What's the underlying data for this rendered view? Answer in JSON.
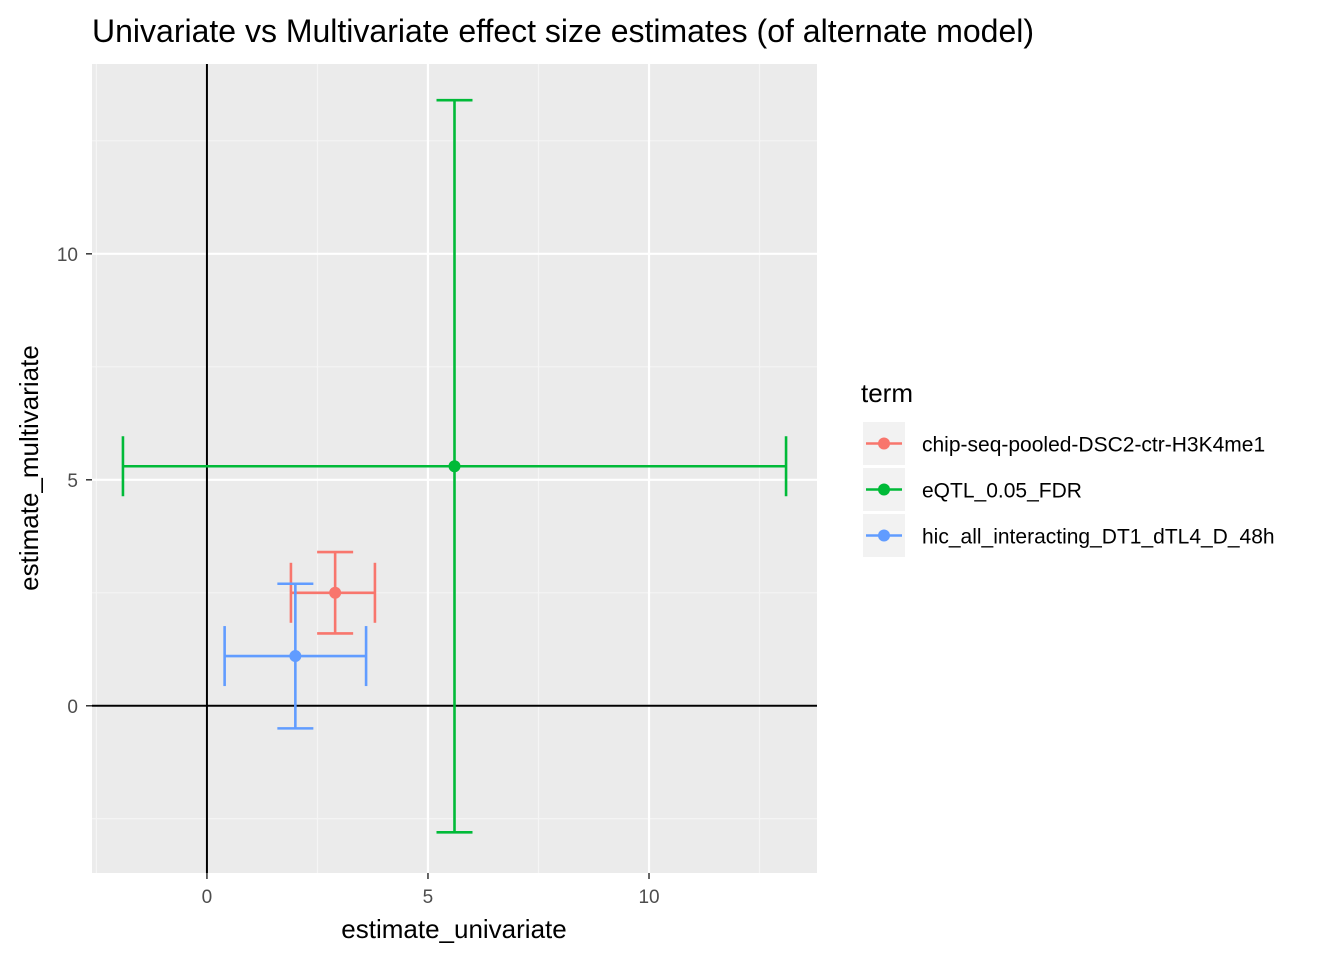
{
  "chart_data": {
    "type": "scatter",
    "title": "Univariate vs Multivariate effect size estimates (of alternate model)",
    "xlabel": "estimate_univariate",
    "ylabel": "estimate_multivariate",
    "xlim": [
      -2.6,
      13.8
    ],
    "ylim": [
      -3.7,
      14.2
    ],
    "x_ticks": [
      0,
      5,
      10
    ],
    "y_ticks": [
      0,
      5,
      10
    ],
    "x_tick_labels": [
      "0",
      "5",
      "10"
    ],
    "y_tick_labels": [
      "0",
      "5",
      "10"
    ],
    "grid": true,
    "reference_lines": {
      "x": 0,
      "y": 0
    },
    "legend": {
      "title": "term",
      "position": "right"
    },
    "series": [
      {
        "name": "chip-seq-pooled-DSC2-ctr-H3K4me1",
        "color": "#F8766D",
        "x": 2.9,
        "y": 2.5,
        "x_low": 1.9,
        "x_high": 3.8,
        "y_low": 1.6,
        "y_high": 3.4
      },
      {
        "name": "eQTL_0.05_FDR",
        "color": "#00BA38",
        "x": 5.6,
        "y": 5.3,
        "x_low": -1.9,
        "x_high": 13.1,
        "y_low": -2.8,
        "y_high": 13.4
      },
      {
        "name": "hic_all_interacting_DT1_dTL4_D_48h",
        "color": "#619CFF",
        "x": 2.0,
        "y": 1.1,
        "x_low": 0.4,
        "x_high": 3.6,
        "y_low": -0.5,
        "y_high": 2.7
      }
    ]
  }
}
